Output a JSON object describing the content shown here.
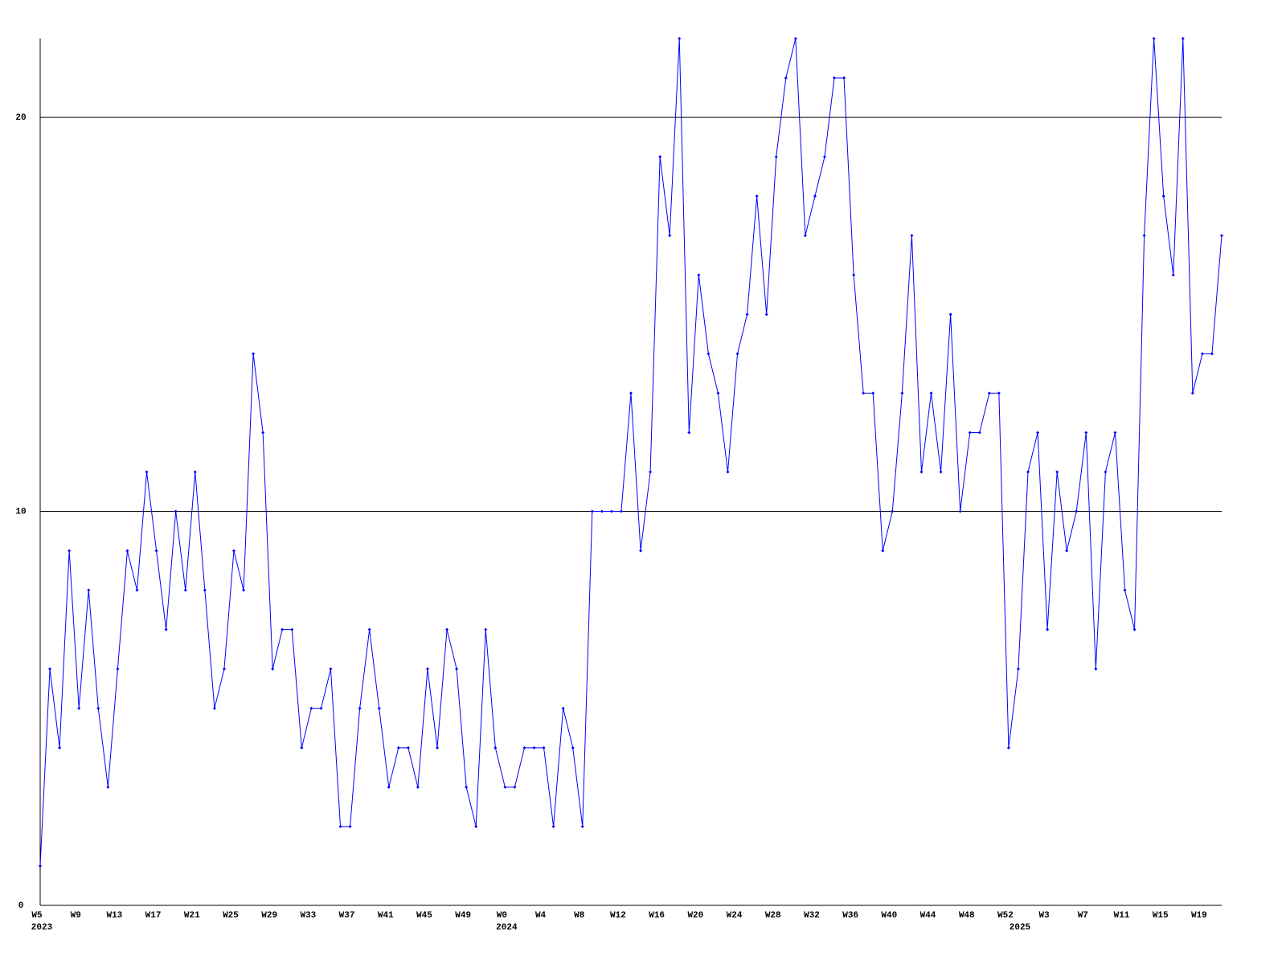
{
  "chart_data": {
    "type": "line",
    "categories": [
      "W5",
      null,
      null,
      null,
      "W9",
      null,
      null,
      null,
      "W13",
      null,
      null,
      null,
      "W17",
      null,
      null,
      null,
      "W21",
      null,
      null,
      null,
      "W25",
      null,
      null,
      null,
      "W29",
      null,
      null,
      null,
      "W33",
      null,
      null,
      null,
      "W37",
      null,
      null,
      null,
      "W41",
      null,
      null,
      null,
      "W45",
      null,
      null,
      null,
      "W49",
      null,
      null,
      null,
      "W0",
      null,
      null,
      null,
      "W4",
      null,
      null,
      null,
      "W8",
      null,
      null,
      null,
      "W12",
      null,
      null,
      null,
      "W16",
      null,
      null,
      null,
      "W20",
      null,
      null,
      null,
      "W24",
      null,
      null,
      null,
      "W28",
      null,
      null,
      null,
      "W32",
      null,
      null,
      null,
      "W36",
      null,
      null,
      null,
      "W40",
      null,
      null,
      null,
      "W44",
      null,
      null,
      null,
      "W48",
      null,
      null,
      null,
      "W52",
      null,
      null,
      null,
      "W3",
      null,
      null,
      null,
      "W7",
      null,
      null,
      null,
      "W11",
      null,
      null,
      null,
      "W15",
      null,
      null,
      null,
      "W19",
      null,
      null
    ],
    "years": [
      "2023",
      null,
      null,
      null,
      null,
      null,
      null,
      null,
      null,
      null,
      null,
      null,
      null,
      null,
      null,
      null,
      null,
      null,
      null,
      null,
      null,
      null,
      null,
      null,
      null,
      null,
      null,
      null,
      null,
      null,
      null,
      null,
      null,
      null,
      null,
      null,
      null,
      null,
      null,
      null,
      null,
      null,
      null,
      null,
      null,
      null,
      null,
      null,
      "2024",
      null,
      null,
      null,
      null,
      null,
      null,
      null,
      null,
      null,
      null,
      null,
      null,
      null,
      null,
      null,
      null,
      null,
      null,
      null,
      null,
      null,
      null,
      null,
      null,
      null,
      null,
      null,
      null,
      null,
      null,
      null,
      null,
      null,
      null,
      null,
      null,
      null,
      null,
      null,
      null,
      null,
      null,
      null,
      null,
      null,
      null,
      null,
      null,
      null,
      null,
      null,
      null,
      "2025",
      null,
      null,
      null,
      null,
      null,
      null,
      null,
      null,
      null,
      null,
      null,
      null,
      null,
      null,
      null,
      null,
      null,
      null,
      null,
      null
    ],
    "series": [
      {
        "color": "#0000ff",
        "values": [
          1,
          6,
          4,
          9,
          5,
          8,
          5,
          3,
          6,
          9,
          8,
          11,
          9,
          7,
          10,
          8,
          11,
          8,
          5,
          6,
          9,
          8,
          14,
          12,
          6,
          7,
          7,
          4,
          5,
          5,
          6,
          2,
          2,
          5,
          7,
          5,
          3,
          4,
          4,
          3,
          6,
          4,
          7,
          6,
          3,
          2,
          7,
          4,
          3,
          3,
          4,
          4,
          4,
          2,
          5,
          4,
          2,
          10,
          10,
          10,
          10,
          13,
          9,
          11,
          19,
          17,
          22,
          12,
          16,
          14,
          13,
          11,
          14,
          15,
          18,
          15,
          19,
          21,
          22,
          17,
          18,
          19,
          21,
          21,
          16,
          13,
          13,
          9,
          10,
          13,
          17,
          11,
          13,
          11,
          15,
          10,
          12,
          12,
          13,
          13,
          4,
          6,
          11,
          12,
          7,
          11,
          9,
          10,
          12,
          6,
          11,
          12,
          8,
          7,
          17,
          22,
          18,
          16,
          22,
          13,
          14,
          14,
          17
        ]
      }
    ],
    "ylim": [
      0,
      22
    ],
    "yticks": [
      0,
      10,
      20
    ],
    "grid": true
  }
}
